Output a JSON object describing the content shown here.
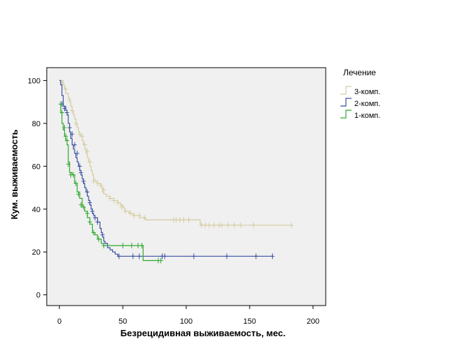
{
  "chart_data": {
    "type": "line",
    "step": true,
    "xlabel": "Безрецидивная выживаемость, мес.",
    "ylabel": "Кум. выживаемость",
    "xlim": [
      -10,
      210
    ],
    "ylim": [
      -5,
      106
    ],
    "xticks": [
      0,
      50,
      100,
      150,
      200
    ],
    "yticks": [
      0,
      20,
      40,
      60,
      80,
      100
    ],
    "grid": false,
    "plot_background": "#f0f0f0",
    "legend": {
      "title": "Лечение",
      "placement": "right-top",
      "entries": [
        "3-комп.",
        "2-комп.",
        "1-комп."
      ]
    },
    "series": [
      {
        "name": "3-комп.",
        "color": "#d4cca0",
        "points": [
          [
            0,
            100
          ],
          [
            2,
            100
          ],
          [
            3,
            98
          ],
          [
            4,
            96
          ],
          [
            5,
            94
          ],
          [
            7,
            92
          ],
          [
            8,
            90
          ],
          [
            9,
            88
          ],
          [
            10,
            86
          ],
          [
            11,
            84
          ],
          [
            12,
            82
          ],
          [
            13,
            80
          ],
          [
            14,
            78
          ],
          [
            15,
            76
          ],
          [
            16,
            75
          ],
          [
            17,
            74
          ],
          [
            18,
            72
          ],
          [
            19,
            70
          ],
          [
            20,
            68
          ],
          [
            21,
            66
          ],
          [
            22,
            64
          ],
          [
            23,
            62
          ],
          [
            24,
            60
          ],
          [
            25,
            58
          ],
          [
            26,
            56
          ],
          [
            27,
            54
          ],
          [
            28,
            53
          ],
          [
            30,
            52
          ],
          [
            32,
            51
          ],
          [
            33,
            50
          ],
          [
            34,
            48
          ],
          [
            35,
            47
          ],
          [
            37,
            46
          ],
          [
            40,
            45
          ],
          [
            43,
            44
          ],
          [
            46,
            43
          ],
          [
            48,
            42
          ],
          [
            50,
            41
          ],
          [
            51,
            40
          ],
          [
            52,
            39
          ],
          [
            55,
            38
          ],
          [
            58,
            37
          ],
          [
            63,
            36
          ],
          [
            65,
            36
          ],
          [
            68,
            35
          ],
          [
            95,
            35
          ],
          [
            110,
            35
          ],
          [
            111,
            33
          ],
          [
            112,
            32.5
          ],
          [
            183,
            32.5
          ]
        ],
        "censored": [
          [
            2,
            99
          ],
          [
            5,
            96
          ],
          [
            8,
            91
          ],
          [
            10,
            86
          ],
          [
            13,
            80
          ],
          [
            16,
            75
          ],
          [
            18,
            74
          ],
          [
            20,
            70
          ],
          [
            22,
            67
          ],
          [
            24,
            62
          ],
          [
            27,
            53
          ],
          [
            30,
            52
          ],
          [
            33,
            51
          ],
          [
            35,
            49
          ],
          [
            40,
            45
          ],
          [
            43,
            44
          ],
          [
            46,
            43
          ],
          [
            49,
            41
          ],
          [
            52,
            39
          ],
          [
            56,
            38
          ],
          [
            59,
            37
          ],
          [
            63,
            37
          ],
          [
            67,
            36
          ],
          [
            90,
            35
          ],
          [
            92,
            35
          ],
          [
            95,
            35
          ],
          [
            98,
            35
          ],
          [
            102,
            35
          ],
          [
            112,
            32.5
          ],
          [
            115,
            32.5
          ],
          [
            118,
            32.5
          ],
          [
            122,
            32.5
          ],
          [
            126,
            32.5
          ],
          [
            128,
            32.5
          ],
          [
            133,
            32.5
          ],
          [
            138,
            32.5
          ],
          [
            143,
            32.5
          ],
          [
            153,
            32.5
          ],
          [
            183,
            32.5
          ]
        ]
      },
      {
        "name": "2-комп.",
        "color": "#3a4fa0",
        "points": [
          [
            0,
            100
          ],
          [
            1,
            98
          ],
          [
            2,
            93
          ],
          [
            3,
            88
          ],
          [
            5,
            86
          ],
          [
            6,
            84
          ],
          [
            7,
            80
          ],
          [
            8,
            76
          ],
          [
            9,
            73
          ],
          [
            10,
            70
          ],
          [
            11,
            68
          ],
          [
            12,
            66
          ],
          [
            13,
            64
          ],
          [
            14,
            62
          ],
          [
            15,
            60
          ],
          [
            16,
            58
          ],
          [
            17,
            56
          ],
          [
            18,
            54
          ],
          [
            19,
            52
          ],
          [
            20,
            50
          ],
          [
            21,
            48
          ],
          [
            22,
            46
          ],
          [
            23,
            44
          ],
          [
            24,
            42
          ],
          [
            25,
            40
          ],
          [
            26,
            38
          ],
          [
            27,
            37
          ],
          [
            28,
            36
          ],
          [
            30,
            34
          ],
          [
            32,
            31
          ],
          [
            33,
            29
          ],
          [
            34,
            27
          ],
          [
            35,
            25
          ],
          [
            36,
            24
          ],
          [
            38,
            22
          ],
          [
            40,
            21
          ],
          [
            42,
            20
          ],
          [
            44,
            19
          ],
          [
            46,
            18
          ],
          [
            83,
            18
          ],
          [
            168,
            18
          ]
        ],
        "censored": [
          [
            2,
            89
          ],
          [
            4,
            87
          ],
          [
            6,
            85
          ],
          [
            8,
            78
          ],
          [
            10,
            75
          ],
          [
            12,
            70
          ],
          [
            14,
            66
          ],
          [
            16,
            60
          ],
          [
            17,
            57
          ],
          [
            19,
            53
          ],
          [
            22,
            48
          ],
          [
            24,
            43
          ],
          [
            26,
            39
          ],
          [
            28,
            36
          ],
          [
            30,
            34
          ],
          [
            34,
            28
          ],
          [
            47,
            18
          ],
          [
            58,
            18
          ],
          [
            63,
            18
          ],
          [
            81,
            18
          ],
          [
            83,
            18
          ],
          [
            106,
            18
          ],
          [
            132,
            18
          ],
          [
            155,
            18
          ],
          [
            168,
            18
          ]
        ]
      },
      {
        "name": "1-комп.",
        "color": "#30a830",
        "points": [
          [
            0,
            89
          ],
          [
            1,
            85
          ],
          [
            2,
            80
          ],
          [
            3,
            77
          ],
          [
            4,
            74
          ],
          [
            5,
            72
          ],
          [
            6,
            70
          ],
          [
            7,
            62
          ],
          [
            8,
            57
          ],
          [
            10,
            56
          ],
          [
            12,
            52
          ],
          [
            14,
            48
          ],
          [
            16,
            45
          ],
          [
            18,
            41
          ],
          [
            20,
            39
          ],
          [
            22,
            36
          ],
          [
            24,
            33
          ],
          [
            26,
            29
          ],
          [
            28,
            28
          ],
          [
            30,
            26
          ],
          [
            33,
            24
          ],
          [
            35,
            23
          ],
          [
            65,
            23
          ],
          [
            66,
            16
          ],
          [
            80,
            16
          ]
        ],
        "censored": [
          [
            1,
            89
          ],
          [
            2,
            85
          ],
          [
            4,
            78
          ],
          [
            5,
            74
          ],
          [
            6,
            72
          ],
          [
            7,
            61
          ],
          [
            9,
            56
          ],
          [
            11,
            56
          ],
          [
            13,
            52
          ],
          [
            15,
            47
          ],
          [
            17,
            42
          ],
          [
            19,
            41
          ],
          [
            22,
            38
          ],
          [
            24,
            34
          ],
          [
            27,
            29
          ],
          [
            31,
            26
          ],
          [
            35,
            23
          ],
          [
            50,
            23
          ],
          [
            57,
            23
          ],
          [
            62,
            23
          ],
          [
            65,
            23
          ],
          [
            78,
            16
          ],
          [
            80,
            16
          ]
        ]
      }
    ]
  }
}
